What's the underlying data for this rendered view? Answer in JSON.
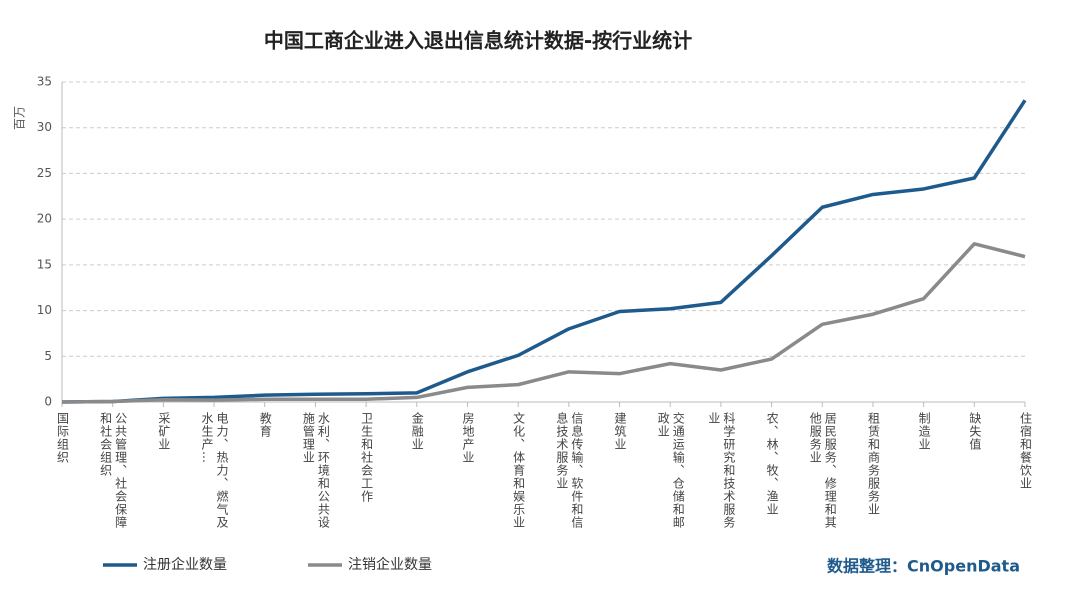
{
  "chart_data": {
    "type": "line",
    "title": "中国工商企业进入退出信息统计数据-按行业统计",
    "y_label": "百万",
    "categories": [
      "国际组织",
      "公共管理、社会保障和社会组织",
      "采矿业",
      "电力、热力、燃气及水生产…",
      "教育",
      "水利、环境和公共设施管理业",
      "卫生和社会工作",
      "金融业",
      "房地产业",
      "文化、体育和娱乐业",
      "信息传输、软件和信息技术服务业",
      "建筑业",
      "交通运输、仓储和邮政业",
      "科学研究和技术服务业",
      "农、林、牧、渔业",
      "居民服务、修理和其他服务业",
      "租赁和商务服务业",
      "制造业",
      "缺失值",
      "住宿和餐饮业"
    ],
    "series": [
      {
        "name": "注册企业数量",
        "color": "#1f5a8c",
        "values": [
          0,
          0.05,
          0.4,
          0.5,
          0.75,
          0.85,
          0.9,
          1.0,
          3.3,
          5.1,
          8.0,
          9.9,
          10.2,
          10.9,
          16.0,
          21.3,
          22.7,
          23.3,
          24.5,
          33.0
        ]
      },
      {
        "name": "注销企业数量",
        "color": "#8a8a8a",
        "values": [
          0,
          0.05,
          0.25,
          0.2,
          0.3,
          0.3,
          0.3,
          0.5,
          1.6,
          1.9,
          3.3,
          3.1,
          4.2,
          3.5,
          4.7,
          8.5,
          9.6,
          11.3,
          17.3,
          15.9
        ]
      }
    ],
    "ylim": [
      0,
      35
    ],
    "yticks": [
      0,
      5,
      10,
      15,
      20,
      25,
      30,
      35
    ],
    "grid": true,
    "legend": "bottom-left",
    "source": "数据整理：CnOpenData"
  }
}
